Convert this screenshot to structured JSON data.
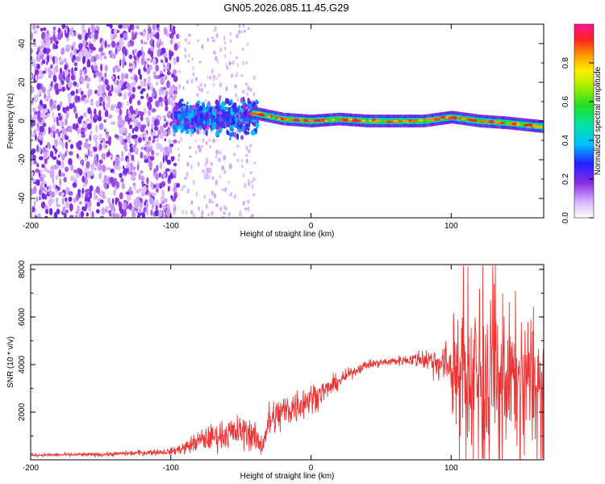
{
  "title": "GN05.2026.085.11.45.G29",
  "colors": {
    "snr_line": "#ee3333",
    "axis": "#000000",
    "background": "#ffffff"
  },
  "chart_data": [
    {
      "type": "heatmap",
      "name": "spectrogram",
      "xlabel": "Height of straight line (km)",
      "ylabel": "Frequency (Hz)",
      "xlim": [
        -200,
        166
      ],
      "ylim": [
        -50,
        50
      ],
      "xticks": [
        -200,
        -100,
        0,
        100
      ],
      "yticks": [
        -40,
        -20,
        0,
        20,
        40
      ],
      "colorbar": {
        "label": "Normalized spectral amplitude",
        "range": [
          0.0,
          1.0
        ],
        "ticks": [
          "0.0",
          "0.2",
          "0.4",
          "0.6",
          "0.8"
        ]
      },
      "description_of_structure": {
        "noise_region_x": [
          -200,
          -95
        ],
        "transition_region_x": [
          -95,
          -40
        ],
        "central_band_x": [
          -40,
          166
        ],
        "central_band_frequency_hz": [
          [
            -40,
            4
          ],
          [
            -20,
            1
          ],
          [
            0,
            0
          ],
          [
            20,
            1
          ],
          [
            40,
            0
          ],
          [
            60,
            0
          ],
          [
            80,
            0
          ],
          [
            100,
            2
          ],
          [
            120,
            0
          ],
          [
            140,
            -1
          ],
          [
            166,
            -3
          ]
        ]
      }
    },
    {
      "type": "line",
      "name": "snr",
      "xlabel": "Height of straight line (km)",
      "ylabel": "SNR (10 * v/v)",
      "xlim": [
        -200,
        166
      ],
      "ylim": [
        0,
        8200
      ],
      "xticks": [
        -200,
        -100,
        0,
        100
      ],
      "yticks": [
        2000,
        4000,
        6000,
        8000
      ],
      "envelope": {
        "x": [
          -200,
          -150,
          -100,
          -90,
          -80,
          -60,
          -45,
          -35,
          -30,
          -20,
          -10,
          0,
          10,
          20,
          30,
          40,
          60,
          70,
          80,
          90,
          100,
          105,
          110,
          120,
          130,
          140,
          150,
          160,
          166
        ],
        "mean": [
          200,
          220,
          350,
          500,
          800,
          1100,
          1200,
          600,
          1600,
          2000,
          2300,
          2600,
          2900,
          3300,
          3700,
          4000,
          4150,
          4200,
          4250,
          4100,
          3900,
          3700,
          3600,
          3600,
          3500,
          3400,
          3400,
          3300,
          3200
        ],
        "spread": [
          80,
          90,
          150,
          300,
          500,
          700,
          800,
          500,
          900,
          900,
          850,
          700,
          500,
          350,
          250,
          200,
          200,
          250,
          500,
          800,
          1200,
          2500,
          3500,
          3500,
          3300,
          3200,
          3000,
          2600,
          2500
        ]
      }
    }
  ]
}
